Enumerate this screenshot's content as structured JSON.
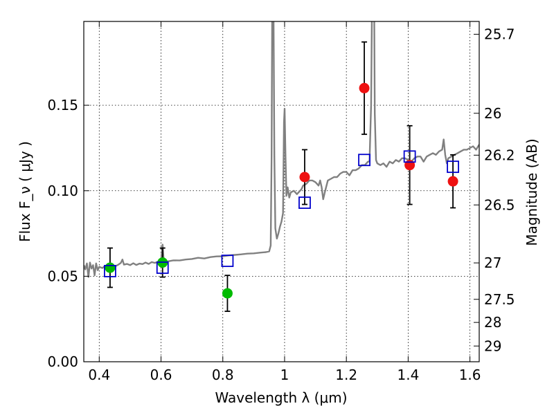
{
  "chart_data": {
    "type": "scatter",
    "xlabel": "Wavelength  λ (μm)",
    "ylabel": "Flux  F_ν  ( μJy )",
    "y2label": "Magnitude (AB)",
    "xlim": [
      0.35,
      1.63
    ],
    "ylim": [
      0.0,
      0.199
    ],
    "x_ticks": [
      0.4,
      0.6,
      0.8,
      1.0,
      1.2,
      1.4,
      1.6
    ],
    "x_tick_labels": [
      "0.4",
      "0.6",
      "0.8",
      "1",
      "1.2",
      "1.4",
      "1.6"
    ],
    "y_ticks": [
      0.0,
      0.05,
      0.1,
      0.15
    ],
    "y_tick_labels": [
      "0.00",
      "0.05",
      "0.10",
      "0.15"
    ],
    "y2_ticks": [
      {
        "label": "25.7",
        "flux": 0.1915
      },
      {
        "label": "26",
        "flux": 0.1453
      },
      {
        "label": "26.2",
        "flux": 0.1208
      },
      {
        "label": "26.5",
        "flux": 0.0917
      },
      {
        "label": "27",
        "flux": 0.0578
      },
      {
        "label": "27.5",
        "flux": 0.0365
      },
      {
        "label": "28",
        "flux": 0.023
      },
      {
        "label": "29",
        "flux": 0.0092
      }
    ],
    "grid": true,
    "colors": {
      "spectrum": "#808080",
      "green": "#00bb00",
      "red": "#ee1111",
      "model": "#0000cc",
      "errorbar": "#000000"
    },
    "series": [
      {
        "marker": "circle",
        "color": "green",
        "points": [
          {
            "x": 0.435,
            "y": 0.055,
            "err": 0.0115
          },
          {
            "x": 0.605,
            "y": 0.058,
            "err": 0.0085
          },
          {
            "x": 0.815,
            "y": 0.04,
            "err": 0.0105
          }
        ]
      },
      {
        "marker": "circle",
        "color": "red",
        "points": [
          {
            "x": 1.065,
            "y": 0.108,
            "err": 0.016
          },
          {
            "x": 1.258,
            "y": 0.16,
            "err": 0.027
          },
          {
            "x": 1.405,
            "y": 0.115,
            "err": 0.023
          },
          {
            "x": 1.545,
            "y": 0.1055,
            "err": 0.0155
          }
        ]
      },
      {
        "marker": "open-square",
        "color": "model",
        "points": [
          {
            "x": 0.435,
            "y": 0.053
          },
          {
            "x": 0.605,
            "y": 0.055
          },
          {
            "x": 0.815,
            "y": 0.059
          },
          {
            "x": 1.065,
            "y": 0.093
          },
          {
            "x": 1.258,
            "y": 0.118
          },
          {
            "x": 1.405,
            "y": 0.12
          },
          {
            "x": 1.545,
            "y": 0.114
          }
        ]
      }
    ],
    "spectrum": {
      "color": "spectrum",
      "points": [
        [
          0.35,
          0.0565
        ],
        [
          0.355,
          0.054
        ],
        [
          0.36,
          0.0575
        ],
        [
          0.365,
          0.0495
        ],
        [
          0.37,
          0.058
        ],
        [
          0.375,
          0.0545
        ],
        [
          0.38,
          0.0565
        ],
        [
          0.385,
          0.0505
        ],
        [
          0.39,
          0.0575
        ],
        [
          0.395,
          0.0535
        ],
        [
          0.4,
          0.0555
        ],
        [
          0.41,
          0.0548
        ],
        [
          0.42,
          0.0562
        ],
        [
          0.43,
          0.0552
        ],
        [
          0.44,
          0.0568
        ],
        [
          0.45,
          0.0556
        ],
        [
          0.46,
          0.0566
        ],
        [
          0.47,
          0.0578
        ],
        [
          0.475,
          0.0598
        ],
        [
          0.48,
          0.0568
        ],
        [
          0.49,
          0.0572
        ],
        [
          0.5,
          0.0565
        ],
        [
          0.51,
          0.0576
        ],
        [
          0.52,
          0.0566
        ],
        [
          0.53,
          0.0574
        ],
        [
          0.54,
          0.0571
        ],
        [
          0.55,
          0.058
        ],
        [
          0.56,
          0.0572
        ],
        [
          0.57,
          0.0583
        ],
        [
          0.58,
          0.0578
        ],
        [
          0.59,
          0.0585
        ],
        [
          0.6,
          0.0588
        ],
        [
          0.605,
          0.0685
        ],
        [
          0.608,
          0.061
        ],
        [
          0.615,
          0.0589
        ],
        [
          0.62,
          0.0586
        ],
        [
          0.64,
          0.0593
        ],
        [
          0.66,
          0.0592
        ],
        [
          0.68,
          0.0598
        ],
        [
          0.7,
          0.0601
        ],
        [
          0.72,
          0.0608
        ],
        [
          0.74,
          0.0604
        ],
        [
          0.76,
          0.0612
        ],
        [
          0.78,
          0.0616
        ],
        [
          0.8,
          0.0617
        ],
        [
          0.82,
          0.0622
        ],
        [
          0.84,
          0.0625
        ],
        [
          0.86,
          0.0628
        ],
        [
          0.88,
          0.0632
        ],
        [
          0.9,
          0.0634
        ],
        [
          0.92,
          0.0638
        ],
        [
          0.94,
          0.0641
        ],
        [
          0.95,
          0.0645
        ],
        [
          0.955,
          0.068
        ],
        [
          0.958,
          0.12
        ],
        [
          0.96,
          0.21
        ],
        [
          0.964,
          0.21
        ],
        [
          0.967,
          0.12
        ],
        [
          0.97,
          0.078
        ],
        [
          0.975,
          0.072
        ],
        [
          0.98,
          0.075
        ],
        [
          0.985,
          0.079
        ],
        [
          0.99,
          0.082
        ],
        [
          0.995,
          0.087
        ],
        [
          0.998,
          0.14
        ],
        [
          1.0,
          0.148
        ],
        [
          1.003,
          0.12
        ],
        [
          1.006,
          0.097
        ],
        [
          1.01,
          0.102
        ],
        [
          1.015,
          0.096
        ],
        [
          1.02,
          0.099
        ],
        [
          1.03,
          0.1
        ],
        [
          1.04,
          0.098
        ],
        [
          1.05,
          0.1
        ],
        [
          1.055,
          0.101
        ],
        [
          1.06,
          0.103
        ],
        [
          1.07,
          0.104
        ],
        [
          1.08,
          0.106
        ],
        [
          1.09,
          0.106
        ],
        [
          1.1,
          0.105
        ],
        [
          1.11,
          0.103
        ],
        [
          1.115,
          0.106
        ],
        [
          1.12,
          0.102
        ],
        [
          1.125,
          0.095
        ],
        [
          1.13,
          0.099
        ],
        [
          1.14,
          0.106
        ],
        [
          1.15,
          0.107
        ],
        [
          1.16,
          0.108
        ],
        [
          1.17,
          0.108
        ],
        [
          1.18,
          0.11
        ],
        [
          1.19,
          0.111
        ],
        [
          1.2,
          0.111
        ],
        [
          1.21,
          0.109
        ],
        [
          1.22,
          0.112
        ],
        [
          1.23,
          0.112
        ],
        [
          1.24,
          0.113
        ],
        [
          1.25,
          0.115
        ],
        [
          1.26,
          0.115
        ],
        [
          1.27,
          0.117
        ],
        [
          1.275,
          0.117
        ],
        [
          1.28,
          0.15
        ],
        [
          1.283,
          0.21
        ],
        [
          1.29,
          0.21
        ],
        [
          1.292,
          0.145
        ],
        [
          1.296,
          0.118
        ],
        [
          1.3,
          0.116
        ],
        [
          1.31,
          0.115
        ],
        [
          1.32,
          0.116
        ],
        [
          1.33,
          0.114
        ],
        [
          1.34,
          0.117
        ],
        [
          1.35,
          0.116
        ],
        [
          1.36,
          0.118
        ],
        [
          1.37,
          0.117
        ],
        [
          1.38,
          0.119
        ],
        [
          1.39,
          0.119
        ],
        [
          1.4,
          0.118
        ],
        [
          1.41,
          0.117
        ],
        [
          1.42,
          0.119
        ],
        [
          1.43,
          0.12
        ],
        [
          1.44,
          0.12
        ],
        [
          1.45,
          0.117
        ],
        [
          1.46,
          0.12
        ],
        [
          1.47,
          0.121
        ],
        [
          1.48,
          0.122
        ],
        [
          1.49,
          0.121
        ],
        [
          1.5,
          0.123
        ],
        [
          1.51,
          0.124
        ],
        [
          1.515,
          0.13
        ],
        [
          1.52,
          0.121
        ],
        [
          1.525,
          0.116
        ],
        [
          1.53,
          0.119
        ],
        [
          1.54,
          0.12
        ],
        [
          1.55,
          0.121
        ],
        [
          1.56,
          0.122
        ],
        [
          1.57,
          0.123
        ],
        [
          1.58,
          0.124
        ],
        [
          1.59,
          0.124
        ],
        [
          1.6,
          0.125
        ],
        [
          1.61,
          0.126
        ],
        [
          1.62,
          0.124
        ],
        [
          1.63,
          0.127
        ]
      ]
    }
  }
}
